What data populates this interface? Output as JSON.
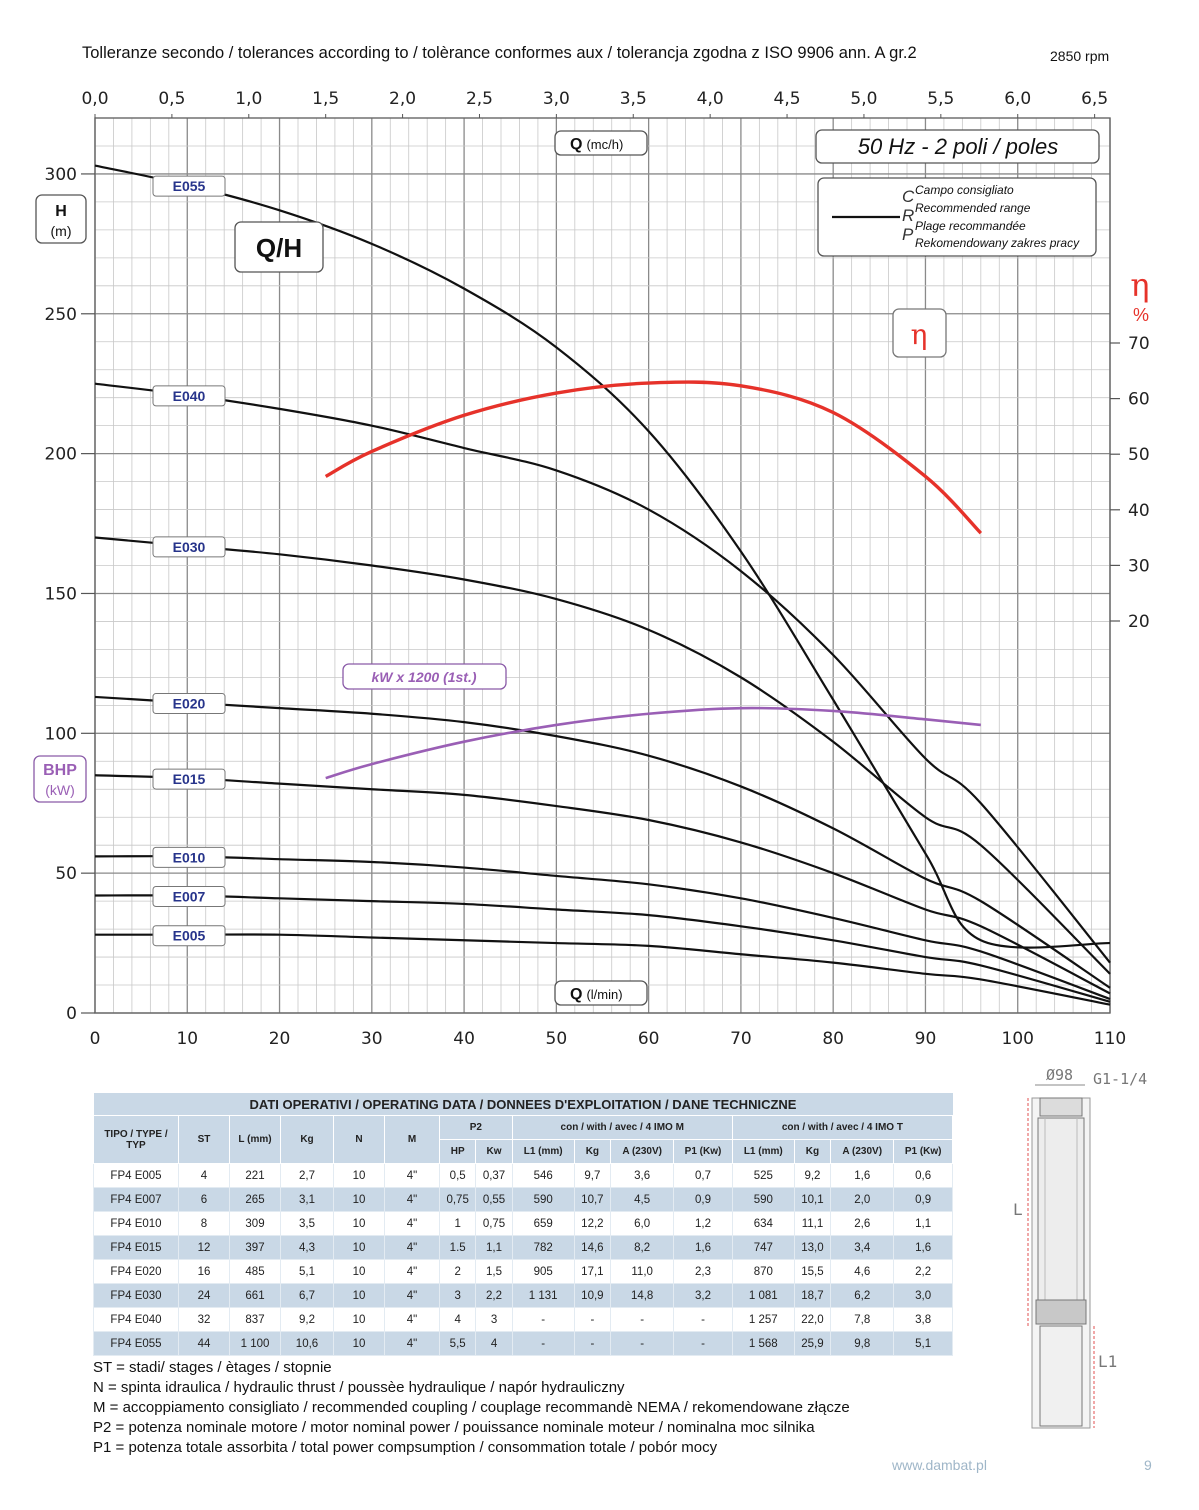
{
  "header": {
    "title": "Tolleranze secondo / tolerances according to / tolèrance conformes aux / tolerancja zgodna z ISO 9906 ann. A gr.2",
    "rpm": "2850 rpm"
  },
  "chart_data": {
    "type": "line",
    "title": "Q/H",
    "frequency_label": "50 Hz - 2 poli / poles",
    "x_top_label": {
      "bold": "Q",
      "unit": "(mc/h)"
    },
    "x_bottom_label": {
      "bold": "Q",
      "unit": "(l/min)"
    },
    "x_top_ticks": [
      "0,0",
      "0,5",
      "1,0",
      "1,5",
      "2,0",
      "2,5",
      "3,0",
      "3,5",
      "4,0",
      "4,5",
      "5,0",
      "5,5",
      "6,0",
      "6,5"
    ],
    "x_bottom_ticks": [
      "0",
      "10",
      "20",
      "30",
      "40",
      "50",
      "60",
      "70",
      "80",
      "90",
      "100",
      "110"
    ],
    "xlim": [
      0,
      110
    ],
    "y_left_label": {
      "bold": "H",
      "unit": "(m)"
    },
    "y_left_ticks": [
      "0",
      "50",
      "100",
      "150",
      "200",
      "250",
      "300"
    ],
    "ylim": [
      0,
      320
    ],
    "bhp_label": {
      "bold": "BHP",
      "unit": "(kW)"
    },
    "eta_label": {
      "symbol": "η",
      "unit": "%"
    },
    "eta_box": "η",
    "eta_ticks": [
      "20",
      "30",
      "40",
      "50",
      "60",
      "70"
    ],
    "eta_axis_values": [
      20,
      30,
      40,
      50,
      60,
      70
    ],
    "kw_label": "kW x 1200 (1st.)",
    "legend": {
      "letters": [
        "C",
        "R",
        "P"
      ],
      "lines": [
        "Campo consigliato",
        "Recommended range",
        "Plage recommandée",
        "Rekomendowany zakres pracy"
      ]
    },
    "series": [
      {
        "name": "E055",
        "x": [
          0,
          10,
          20,
          30,
          40,
          50,
          60,
          70,
          80,
          90,
          96,
          110
        ],
        "y": [
          303,
          296,
          287,
          275,
          259,
          238,
          208,
          165,
          112,
          57,
          26,
          25
        ]
      },
      {
        "name": "E040",
        "x": [
          0,
          10,
          20,
          30,
          40,
          50,
          60,
          70,
          80,
          90,
          96,
          110
        ],
        "y": [
          225,
          221,
          216,
          210,
          202,
          194,
          180,
          158,
          128,
          91,
          75,
          18
        ]
      },
      {
        "name": "E030",
        "x": [
          0,
          10,
          20,
          30,
          40,
          50,
          60,
          70,
          80,
          90,
          96,
          110
        ],
        "y": [
          170,
          167,
          164,
          160,
          155,
          148,
          137,
          120,
          97,
          70,
          60,
          14
        ]
      },
      {
        "name": "E020",
        "x": [
          0,
          10,
          20,
          30,
          40,
          50,
          60,
          70,
          80,
          90,
          96,
          110
        ],
        "y": [
          113,
          111,
          109,
          107,
          104,
          99,
          92,
          81,
          66,
          48,
          40,
          9
        ]
      },
      {
        "name": "E015",
        "x": [
          0,
          10,
          20,
          30,
          40,
          50,
          60,
          70,
          80,
          90,
          96,
          110
        ],
        "y": [
          85,
          84,
          82,
          80,
          78,
          74,
          69,
          61,
          50,
          37,
          31,
          7
        ]
      },
      {
        "name": "E010",
        "x": [
          0,
          10,
          20,
          30,
          40,
          50,
          60,
          70,
          80,
          90,
          96,
          110
        ],
        "y": [
          56,
          56,
          55,
          54,
          52,
          49,
          46,
          41,
          34,
          26,
          22,
          5
        ]
      },
      {
        "name": "E007",
        "x": [
          0,
          10,
          20,
          30,
          40,
          50,
          60,
          70,
          80,
          90,
          96,
          110
        ],
        "y": [
          42,
          42,
          41,
          40,
          39,
          37,
          35,
          31,
          26,
          20,
          17,
          4
        ]
      },
      {
        "name": "E005",
        "x": [
          0,
          10,
          20,
          30,
          40,
          50,
          60,
          70,
          80,
          90,
          96,
          110
        ],
        "y": [
          28,
          28,
          28,
          27,
          26,
          25,
          24,
          21,
          18,
          14,
          12,
          3
        ]
      }
    ],
    "efficiency_curve": {
      "x": [
        25,
        30,
        40,
        50,
        60,
        70,
        80,
        90,
        96
      ],
      "eta": [
        46,
        50.5,
        57,
        61,
        62.8,
        62.3,
        57.5,
        46,
        35.8
      ]
    },
    "power_curve": {
      "x": [
        25,
        30,
        40,
        50,
        60,
        70,
        80,
        90,
        96
      ],
      "y_on_h_axis": [
        84,
        89,
        97,
        103,
        107,
        109,
        108,
        105,
        103
      ]
    }
  },
  "table": {
    "title": "DATI OPERATIVI / OPERATING DATA / DONNEES D'EXPLOITATION / DANE TECHNICZNE",
    "group_headers": {
      "p2": "P2",
      "imo_m": "con / with / avec / 4 IMO M",
      "imo_t": "con / with / avec / 4 IMO T"
    },
    "columns": {
      "type": "TIPO / TYPE / TYP",
      "st": "ST",
      "l": "L (mm)",
      "kg": "Kg",
      "n": "N",
      "m": "M",
      "hp": "HP",
      "kw": "Kw",
      "m_l1": "L1 (mm)",
      "m_kg": "Kg",
      "m_a": "A (230V)",
      "m_p1": "P1 (Kw)",
      "t_l1": "L1 (mm)",
      "t_kg": "Kg",
      "t_a": "A (230V)",
      "t_p1": "P1 (Kw)"
    },
    "rows": [
      [
        "FP4 E005",
        "4",
        "221",
        "2,7",
        "10",
        "4\"",
        "0,5",
        "0,37",
        "546",
        "9,7",
        "3,6",
        "0,7",
        "525",
        "9,2",
        "1,6",
        "0,6"
      ],
      [
        "FP4 E007",
        "6",
        "265",
        "3,1",
        "10",
        "4\"",
        "0,75",
        "0,55",
        "590",
        "10,7",
        "4,5",
        "0,9",
        "590",
        "10,1",
        "2,0",
        "0,9"
      ],
      [
        "FP4 E010",
        "8",
        "309",
        "3,5",
        "10",
        "4\"",
        "1",
        "0,75",
        "659",
        "12,2",
        "6,0",
        "1,2",
        "634",
        "11,1",
        "2,6",
        "1,1"
      ],
      [
        "FP4 E015",
        "12",
        "397",
        "4,3",
        "10",
        "4\"",
        "1.5",
        "1,1",
        "782",
        "14,6",
        "8,2",
        "1,6",
        "747",
        "13,0",
        "3,4",
        "1,6"
      ],
      [
        "FP4 E020",
        "16",
        "485",
        "5,1",
        "10",
        "4\"",
        "2",
        "1,5",
        "905",
        "17,1",
        "11,0",
        "2,3",
        "870",
        "15,5",
        "4,6",
        "2,2"
      ],
      [
        "FP4 E030",
        "24",
        "661",
        "6,7",
        "10",
        "4\"",
        "3",
        "2,2",
        "1 131",
        "10,9",
        "14,8",
        "3,2",
        "1 081",
        "18,7",
        "6,2",
        "3,0"
      ],
      [
        "FP4 E040",
        "32",
        "837",
        "9,2",
        "10",
        "4\"",
        "4",
        "3",
        "-",
        "-",
        "-",
        "-",
        "1 257",
        "22,0",
        "7,8",
        "3,8"
      ],
      [
        "FP4 E055",
        "44",
        "1 100",
        "10,6",
        "10",
        "4\"",
        "5,5",
        "4",
        "-",
        "-",
        "-",
        "-",
        "1 568",
        "25,9",
        "9,8",
        "5,1"
      ]
    ]
  },
  "notes": [
    "ST = stadi/ stages / ètages / stopnie",
    "N  = spinta idraulica / hydraulic thrust / poussèe hydraulique / napór hydrauliczny",
    "M  = accoppiamento consigliato / recommended coupling / couplage recommandè     NEMA / rekomendowane złącze",
    "P2 = potenza nominale motore / motor nominal power / pouissance nominale moteur / nominalna moc silnika",
    "P1 = potenza totale assorbita / total power compsumption / consommation totale / pobór mocy"
  ],
  "drawing": {
    "diameter": "Ø98",
    "thread": "G1-1/4",
    "l": "L",
    "l1": "L1"
  },
  "footer": {
    "website": "www.dambat.pl",
    "page": "9"
  },
  "colors": {
    "curve": "#111111",
    "efficiency": "#e6322a",
    "power": "#9a5fb5",
    "label_blue": "#27348b",
    "table_blue": "#c9d8e6",
    "grid": "#b4b4b4"
  }
}
